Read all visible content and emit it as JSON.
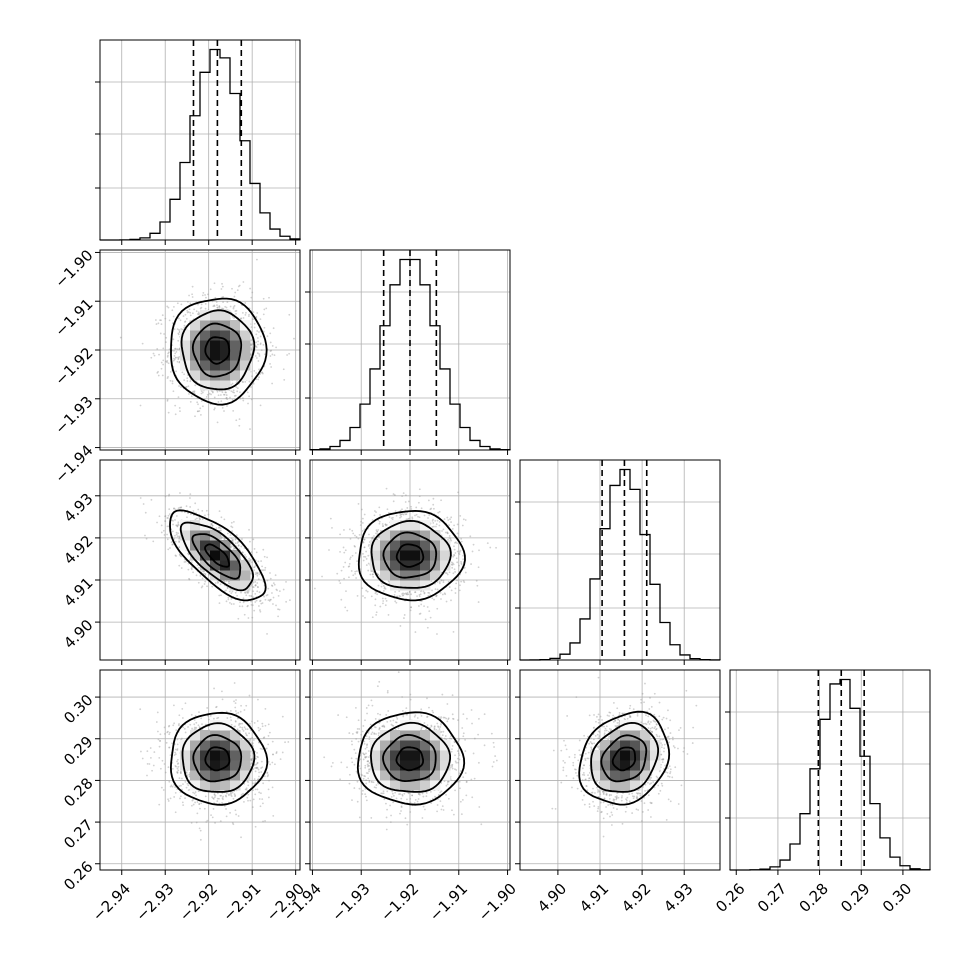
{
  "chart_data": {
    "type": "scatter",
    "title": "",
    "grid": true,
    "parameters": [
      {
        "mean": -2.918,
        "sd": 0.0055,
        "quantiles": [
          -2.9235,
          -2.918,
          -2.9125
        ],
        "range": [
          -2.945,
          -2.899
        ],
        "ticks": [
          -2.94,
          -2.93,
          -2.92,
          -2.91,
          -2.9
        ],
        "tick_labels": [
          "−2.94",
          "−2.93",
          "−2.92",
          "−2.91",
          "−2.90"
        ]
      },
      {
        "mean": -1.92,
        "sd": 0.0054,
        "quantiles": [
          -1.9254,
          -1.92,
          -1.9146
        ],
        "range": [
          -1.9405,
          -1.8995
        ],
        "ticks": [
          -1.94,
          -1.93,
          -1.92,
          -1.91,
          -1.9
        ],
        "tick_labels": [
          "−1.94",
          "−1.93",
          "−1.92",
          "−1.91",
          "−1.90"
        ]
      },
      {
        "mean": 4.9158,
        "sd": 0.0053,
        "quantiles": [
          4.9105,
          4.9158,
          4.9211
        ],
        "range": [
          4.891,
          4.9385
        ],
        "ticks": [
          4.9,
          4.91,
          4.92,
          4.93
        ],
        "tick_labels": [
          "4.90",
          "4.91",
          "4.92",
          "4.93"
        ]
      },
      {
        "mean": 0.2852,
        "sd": 0.0055,
        "quantiles": [
          0.2797,
          0.2852,
          0.2907
        ],
        "range": [
          0.2585,
          0.3065
        ],
        "ticks": [
          0.26,
          0.27,
          0.28,
          0.29,
          0.3
        ],
        "tick_labels": [
          "0.26",
          "0.27",
          "0.28",
          "0.29",
          "0.30"
        ]
      }
    ],
    "correlations": [
      {
        "i": 1,
        "j": 0,
        "rho": 0.0
      },
      {
        "i": 2,
        "j": 0,
        "rho": -0.7
      },
      {
        "i": 2,
        "j": 1,
        "rho": 0.0
      },
      {
        "i": 3,
        "j": 0,
        "rho": 0.0
      },
      {
        "i": 3,
        "j": 1,
        "rho": 0.0
      },
      {
        "i": 3,
        "j": 2,
        "rho": 0.2
      }
    ],
    "histogram_bins": 20,
    "contour_levels_sigma": [
      0.5,
      1.0,
      1.5,
      2.0
    ]
  }
}
